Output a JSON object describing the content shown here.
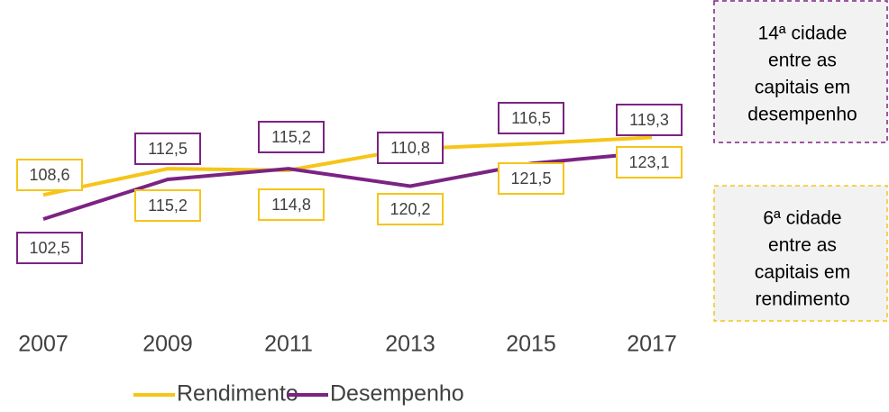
{
  "chart_data": {
    "type": "line",
    "categories": [
      "2007",
      "2009",
      "2011",
      "2013",
      "2015",
      "2017"
    ],
    "series": [
      {
        "name": "Rendimento",
        "color": "#f5c518",
        "values": [
          108.6,
          115.2,
          114.8,
          120.2,
          121.5,
          123.1
        ],
        "value_labels": [
          "108,6",
          "115,2",
          "114,8",
          "120,2",
          "121,5",
          "123,1"
        ]
      },
      {
        "name": "Desempenho",
        "color": "#7b2383",
        "values": [
          102.5,
          112.5,
          115.2,
          110.8,
          116.5,
          119.3
        ],
        "value_labels": [
          "102,5",
          "112,5",
          "115,2",
          "110,8",
          "116,5",
          "119,3"
        ]
      }
    ],
    "ylim": [
      100,
      130
    ],
    "annotations": [
      {
        "lines": [
          "14ª cidade",
          "entre as",
          "capitais em",
          "desempenho"
        ],
        "color": "#7b2383"
      },
      {
        "lines": [
          "6ª cidade",
          "entre as",
          "capitais em",
          "rendimento"
        ],
        "color": "#f5c518"
      }
    ]
  }
}
